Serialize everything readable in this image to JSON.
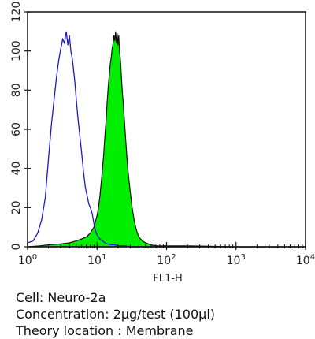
{
  "chart_data": {
    "type": "area",
    "xlabel": "FL1-H",
    "ylabel": "",
    "x_scale": "log",
    "xlim": [
      1,
      10000
    ],
    "ylim": [
      0,
      120
    ],
    "x_ticks": [
      {
        "base": "10",
        "exp": "0",
        "value": 1
      },
      {
        "base": "10",
        "exp": "1",
        "value": 10
      },
      {
        "base": "10",
        "exp": "2",
        "value": 100
      },
      {
        "base": "10",
        "exp": "3",
        "value": 1000
      },
      {
        "base": "10",
        "exp": "4",
        "value": 10000
      }
    ],
    "y_ticks": [
      "0",
      "20",
      "40",
      "60",
      "80",
      "100",
      "120"
    ],
    "grid": false,
    "series": [
      {
        "style": "outline",
        "color": "#1a1ad0",
        "x": [
          1.0,
          1.2,
          1.4,
          1.6,
          1.8,
          2.0,
          2.2,
          2.4,
          2.6,
          2.8,
          3.0,
          3.2,
          3.4,
          3.6,
          3.8,
          4.0,
          4.2,
          4.4,
          4.6,
          4.8,
          5.0,
          5.3,
          5.6,
          6.0,
          6.4,
          6.8,
          7.2,
          7.6,
          8.0,
          8.5,
          9.0,
          9.5,
          10,
          11,
          12,
          13,
          14,
          16,
          18,
          20,
          25,
          30,
          40,
          60,
          100,
          1000,
          10000
        ],
        "values": [
          2,
          3,
          7,
          14,
          25,
          45,
          62,
          75,
          86,
          95,
          101,
          106,
          104,
          110,
          103,
          108,
          100,
          96,
          90,
          84,
          76,
          66,
          58,
          48,
          38,
          30,
          26,
          22,
          20,
          17,
          12,
          8,
          6,
          4,
          3,
          2,
          1.5,
          1,
          1,
          0.5,
          0.5,
          0,
          0,
          0,
          0,
          0,
          0
        ]
      },
      {
        "style": "filled",
        "color": "#00ee00",
        "x": [
          1.0,
          1.5,
          2.0,
          3.0,
          4.0,
          5.0,
          6.0,
          7.0,
          8.0,
          9.0,
          10,
          10.5,
          11,
          11.5,
          12,
          12.5,
          13,
          13.5,
          14,
          14.5,
          15,
          15.5,
          16,
          16.5,
          17,
          17.5,
          18,
          18.5,
          19,
          19.5,
          20,
          20.5,
          21,
          21.5,
          22,
          22.5,
          23,
          24,
          25,
          26,
          27,
          28,
          30,
          32,
          34,
          36,
          38,
          40,
          45,
          50,
          55,
          60,
          70,
          80,
          100,
          150,
          200,
          1000,
          10000
        ],
        "values": [
          0,
          0.5,
          1,
          1.5,
          2,
          3,
          4,
          5,
          7,
          10,
          16,
          20,
          26,
          33,
          40,
          48,
          57,
          65,
          74,
          82,
          88,
          93,
          97,
          101,
          104,
          108,
          105,
          110,
          104,
          109,
          103,
          108,
          100,
          97,
          92,
          86,
          80,
          72,
          62,
          53,
          45,
          38,
          28,
          20,
          14,
          10,
          7,
          5,
          3,
          2,
          1.5,
          1,
          0.5,
          0.5,
          0.5,
          0.5,
          0.5,
          0,
          0
        ]
      }
    ]
  },
  "caption": {
    "cell": "Cell: Neuro-2a",
    "concentration": "Concentration: 2μg/test (100μl)",
    "location": "Theory location : Membrane"
  }
}
